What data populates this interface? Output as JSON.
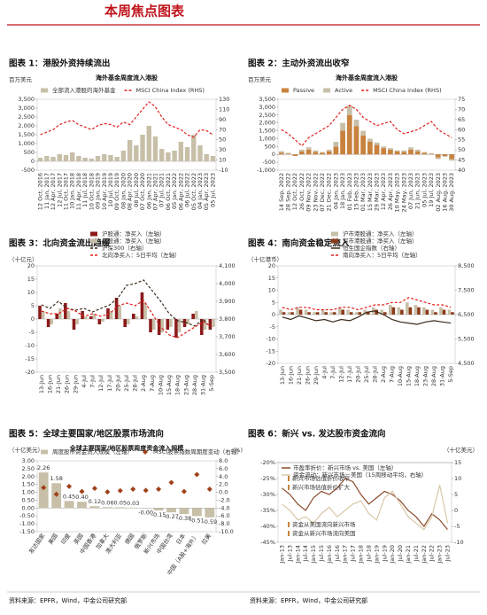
{
  "header": {
    "title": "本周焦点图表"
  },
  "source_left": "资料来源：EPFR，Wind，中金公司研究部",
  "source_right": "资料来源：EPFR，Wind，中金公司研究部",
  "chart_data": [
    {
      "type": "combo",
      "title": "图表 1：港股外资持续流出",
      "subtitle": "海外基金周度流入港股",
      "ylabel": "百万美元",
      "categories": [
        "12 Oct, 2016",
        "11 Jan, 2017",
        "12 Apr, 2017",
        "12 Jul, 2017",
        "11 Oct, 2017",
        "10 Jan, 2018",
        "11 Apr, 2018",
        "11 Jul, 2018",
        "10 Oct, 2018",
        "09 Jan, 2019",
        "10 Apr, 2019",
        "10 Jul, 2019",
        "09 Oct, 2019",
        "08 Jan, 2020",
        "08 Apr, 2020",
        "08 Jul, 2020",
        "07 Oct, 2020",
        "06 Jan, 2021",
        "07 Apr, 2021",
        "07 Jul, 2021",
        "06 Oct, 2021",
        "05 Jan, 2022",
        "06 Apr, 2022",
        "06 Jul, 2022",
        "05 Oct, 2022",
        "04 Jan, 2023",
        "05 Apr, 2023",
        "05 Jul, 2023"
      ],
      "series": [
        {
          "name": "全部流入港股的海外基金",
          "kind": "bar",
          "color": "#c8bfa8",
          "values": [
            200,
            300,
            250,
            400,
            350,
            500,
            300,
            200,
            150,
            300,
            400,
            350,
            250,
            600,
            1200,
            900,
            1500,
            2000,
            1400,
            700,
            500,
            600,
            1100,
            800,
            1500,
            900,
            400,
            300
          ]
        },
        {
          "name": "MSCI China Index (RHS)",
          "kind": "line",
          "dash": true,
          "axis": "y2",
          "color": "#e0201c",
          "values": [
            60,
            65,
            70,
            80,
            85,
            88,
            80,
            75,
            70,
            78,
            82,
            80,
            75,
            85,
            80,
            95,
            110,
            125,
            115,
            95,
            80,
            75,
            70,
            60,
            55,
            70,
            68,
            60
          ]
        }
      ],
      "ylim": [
        -500,
        3500
      ],
      "yticks": [
        -500,
        0,
        500,
        {
          "value": 1000,
          "label": "1,000"
        },
        {
          "value": 1500,
          "label": "1,500"
        },
        {
          "value": 2000,
          "label": "2,000"
        },
        {
          "value": 2500,
          "label": "2,500"
        },
        {
          "value": 3000,
          "label": "3,000"
        },
        {
          "value": 3500,
          "label": "3,500"
        }
      ],
      "y2lim": [
        -10,
        130
      ],
      "y2ticks": [
        -10,
        10,
        30,
        50,
        70,
        90,
        110,
        130
      ],
      "legend": "top"
    },
    {
      "type": "combo",
      "title": "图表 2：主动外资流出收窄",
      "subtitle": "海外基金周度流入港股",
      "ylabel": "百万美元",
      "stacked": true,
      "categories": [
        "14 Sep, 2022",
        "28 Sep, 2022",
        "12 Oct, 2022",
        "26 Oct, 2022",
        "09 Nov, 2022",
        "23 Nov, 2022",
        "07 Dec, 2022",
        "21 Dec, 2022",
        "04 Jan, 2023",
        "18 Jan, 2023",
        "01 Feb, 2023",
        "15 Feb, 2023",
        "01 Mar, 2023",
        "15 Mar, 2023",
        "29 Mar, 2023",
        "12 Apr, 2023",
        "26 Apr, 2023",
        "10 May, 2023",
        "24 May, 2023",
        "07 Jun, 2023",
        "21 Jun, 2023",
        "05 Jul, 2023",
        "19 Jul, 2023",
        "02 Aug, 2023",
        "16 Aug, 2023",
        "30 Aug, 2023"
      ],
      "series": [
        {
          "name": "Passive",
          "kind": "bar",
          "color": "#c8823e",
          "values": [
            100,
            50,
            -100,
            200,
            300,
            150,
            100,
            200,
            500,
            1500,
            2500,
            1800,
            1200,
            800,
            600,
            400,
            300,
            200,
            150,
            300,
            200,
            100,
            50,
            -200,
            -100,
            -300
          ]
        },
        {
          "name": "Active",
          "kind": "bar",
          "color": "#c8bfa8",
          "values": [
            100,
            50,
            0,
            100,
            150,
            100,
            50,
            100,
            300,
            500,
            600,
            400,
            300,
            200,
            150,
            100,
            100,
            50,
            100,
            150,
            100,
            50,
            0,
            -100,
            -50,
            -100
          ]
        },
        {
          "name": "MSCI China Index (RHS)",
          "kind": "line",
          "dash": true,
          "axis": "y2",
          "color": "#e0201c",
          "values": [
            60,
            58,
            55,
            52,
            56,
            58,
            60,
            62,
            66,
            70,
            72,
            70,
            66,
            64,
            62,
            63,
            64,
            60,
            58,
            59,
            60,
            62,
            64,
            60,
            58,
            56
          ]
        }
      ],
      "ylim": [
        -1000,
        3500
      ],
      "yticks": [
        {
          "value": -1000,
          "label": "-1,000"
        },
        -500,
        0,
        500,
        {
          "value": 1000,
          "label": "1,000"
        },
        {
          "value": 1500,
          "label": "1,500"
        },
        {
          "value": 2000,
          "label": "2,000"
        },
        {
          "value": 2500,
          "label": "2,500"
        },
        {
          "value": 3000,
          "label": "3,000"
        },
        {
          "value": 3500,
          "label": "3,500"
        }
      ],
      "y2lim": [
        40,
        75
      ],
      "y2ticks": [
        40,
        45,
        50,
        55,
        60,
        65,
        70,
        75
      ],
      "legend": "top"
    },
    {
      "type": "combo",
      "title": "图表 3：北向资金流出趋缓",
      "ylabel": "（十亿元）",
      "categories": [
        "13-Jun",
        "16-Jun",
        "21-Jun",
        "26-Jun",
        "29-Jun",
        "4-Jul",
        "7-Jul",
        "12-Jul",
        "17-Jul",
        "20-Jul",
        "25-Jul",
        "28-Jul",
        "2-Aug",
        "7-Aug",
        "10-Aug",
        "15-Aug",
        "18-Aug",
        "23-Aug",
        "28-Aug",
        "31-Aug",
        "5-Sep"
      ],
      "series": [
        {
          "name": "沪股通：净买入（左轴）",
          "kind": "bar",
          "color": "#8b1a1a",
          "values": [
            5,
            -3,
            2,
            6,
            -4,
            3,
            1,
            -2,
            4,
            8,
            -3,
            2,
            10,
            -5,
            -6,
            -4,
            -7,
            -3,
            2,
            -6,
            -4
          ]
        },
        {
          "name": "深股通：净买入（左轴）",
          "kind": "bar",
          "color": "#c8bfa8",
          "values": [
            3,
            -2,
            4,
            3,
            -2,
            1,
            2,
            -1,
            3,
            5,
            -2,
            1,
            6,
            -4,
            -5,
            -3,
            -5,
            -2,
            3,
            -4,
            -3
          ]
        },
        {
          "name": "沪深300（右轴）",
          "kind": "line",
          "dash": true,
          "axis": "y2",
          "color": "#3a2a1a",
          "values": [
            3880,
            3860,
            3900,
            3860,
            3850,
            3860,
            3840,
            3860,
            3880,
            3920,
            3990,
            4000,
            4020,
            3960,
            3900,
            3830,
            3790,
            3780,
            3760,
            3800,
            3740
          ]
        },
        {
          "name": "北向净买入：5日平均（左轴）",
          "kind": "line",
          "dash": true,
          "color": "#e0201c",
          "values": [
            3,
            2,
            2,
            4,
            3,
            1,
            2,
            1,
            2,
            5,
            6,
            5,
            7,
            2,
            -3,
            -6,
            -7,
            -5,
            -3,
            -1,
            -3
          ]
        }
      ],
      "ylim": [
        -20,
        20
      ],
      "yticks": [
        -20,
        -15,
        -10,
        -5,
        0,
        5,
        10,
        15,
        20
      ],
      "y2lim": [
        3500,
        4100
      ],
      "y2ticks": [
        {
          "value": 3500,
          "label": "3,500"
        },
        {
          "value": 3600,
          "label": "3,600"
        },
        {
          "value": 3700,
          "label": "3,700"
        },
        {
          "value": 3800,
          "label": "3,800"
        },
        {
          "value": 3900,
          "label": "3,900"
        },
        {
          "value": 4000,
          "label": "4,000"
        },
        {
          "value": 4100,
          "label": "4,100"
        }
      ],
      "legend": "top-center"
    },
    {
      "type": "combo",
      "title": "图表 4：南向资金稳定流入",
      "ylabel": "（十亿港币）",
      "categories": [
        "13-Jun",
        "16-Jun",
        "21-Jun",
        "26-Jun",
        "29-Jun",
        "4-Jul",
        "7-Jul",
        "12-Jul",
        "17-Jul",
        "20-Jul",
        "25-Jul",
        "28-Jul",
        "2-Aug",
        "7-Aug",
        "10-Aug",
        "15-Aug",
        "18-Aug",
        "23-Aug",
        "28-Aug",
        "31-Aug",
        "5-Sep"
      ],
      "series": [
        {
          "name": "沪市港股通：净买入（左轴）",
          "kind": "bar",
          "color": "#c8bfa8",
          "values": [
            2,
            1,
            3,
            2,
            1,
            2,
            1,
            3,
            2,
            1,
            2,
            3,
            2,
            4,
            3,
            5,
            4,
            3,
            2,
            3,
            2
          ]
        },
        {
          "name": "深市港股通：净买入（左轴）",
          "kind": "bar",
          "color": "#8b3a1a",
          "values": [
            1,
            1,
            2,
            1,
            1,
            1,
            1,
            2,
            1,
            1,
            1,
            2,
            1,
            3,
            2,
            3,
            3,
            2,
            1,
            2,
            1
          ]
        },
        {
          "name": "恒生国企指数（右轴）",
          "kind": "line",
          "axis": "y2",
          "color": "#3a2a1a",
          "values": [
            6400,
            6300,
            6450,
            6350,
            6250,
            6300,
            6200,
            6300,
            6250,
            6400,
            6600,
            6650,
            6500,
            6300,
            6200,
            6150,
            6100,
            6200,
            6250,
            6200,
            6150
          ]
        },
        {
          "name": "南向净买入：5日平均（左轴）",
          "kind": "line",
          "dash": true,
          "color": "#e0201c",
          "values": [
            3,
            2,
            3,
            3,
            2,
            2,
            2,
            3,
            3,
            2,
            3,
            4,
            4,
            5,
            5,
            7,
            6,
            5,
            4,
            4,
            3
          ]
        }
      ],
      "ylim": [
        -20,
        20
      ],
      "yticks": [
        -20,
        -15,
        -10,
        -5,
        0,
        5,
        10,
        15,
        20
      ],
      "y2lim": [
        4500,
        8500
      ],
      "y2ticks": [
        {
          "value": 4500,
          "label": "4,500"
        },
        {
          "value": 5500,
          "label": "5,500"
        },
        {
          "value": 6500,
          "label": "6,500"
        },
        {
          "value": 7500,
          "label": "7,500"
        },
        {
          "value": 8500,
          "label": "8,500"
        }
      ],
      "legend": "top-center"
    },
    {
      "type": "combo",
      "title": "图表 5：全球主要国家/地区股票市场流向",
      "subtitle": "全球主要国家/地区股票周度资金流入规模",
      "ylabel": "（十亿美元）",
      "y2label": "(%)",
      "categories": [
        "发达国家",
        "美国",
        "印度",
        "英国",
        "中国香港",
        "加拿大",
        "澳大利亚",
        "德国",
        "俄罗斯",
        "新兴市场",
        "中国台湾",
        "日本",
        "中国（A股+海外）",
        "拉美"
      ],
      "series": [
        {
          "name": "周度股市资金流入规模（左轴）",
          "kind": "bar",
          "color": "#c8bfa8",
          "values": [
            2.26,
            1.58,
            0.45,
            0.4,
            0.12,
            0.06,
            0.05,
            0.03,
            -0.001,
            -0.15,
            -0.27,
            -0.38,
            -0.51,
            -0.59
          ],
          "value_labels": [
            "2.26",
            "1.58",
            "0.45",
            "0.40",
            "0.12",
            "0.06",
            "0.05",
            "0.03",
            "-0.00",
            "-0.15",
            "-0.27",
            "-0.38",
            "-0.51",
            "-0.59"
          ]
        },
        {
          "name": "MSCI股票指数周期度变动（右轴）",
          "kind": "diamond",
          "axis": "y2",
          "color": "#a0401a",
          "values": [
            1.2,
            -0.5,
            1.5,
            0.2,
            1.0,
            0.1,
            0.4,
            0.8,
            0.5,
            0.8,
            2.5,
            0.2,
            4.5,
            0.8
          ]
        }
      ],
      "ylim": [
        -1.5,
        3.0
      ],
      "yticks": [
        {
          "value": -1.5,
          "label": "-1.50"
        },
        {
          "value": -1,
          "label": "-1.00"
        },
        {
          "value": -0.5,
          "label": "-0.50"
        },
        {
          "value": 0,
          "label": "0.00"
        },
        {
          "value": 0.5,
          "label": "0.50"
        },
        {
          "value": 1,
          "label": "1.00"
        },
        {
          "value": 1.5,
          "label": "1.50"
        },
        {
          "value": 2,
          "label": "2.00"
        },
        {
          "value": 2.5,
          "label": "2.50"
        },
        {
          "value": 3,
          "label": "3.00"
        }
      ],
      "y2lim": [
        -10,
        8
      ],
      "y2ticks": [
        {
          "value": -10,
          "label": "-10.0"
        },
        {
          "value": -8,
          "label": "-8.0"
        },
        {
          "value": -6,
          "label": "-6.0"
        },
        {
          "value": -4,
          "label": "-4.0"
        },
        {
          "value": -2,
          "label": "-2.0"
        },
        {
          "value": 0,
          "label": "0.0"
        },
        {
          "value": 2,
          "label": "2.0"
        },
        {
          "value": 4,
          "label": "4.0"
        },
        {
          "value": 6,
          "label": "6.0"
        },
        {
          "value": 8,
          "label": "8.0"
        }
      ],
      "legend": "top"
    },
    {
      "type": "combo",
      "title": "图表 6：新兴 vs. 发达股市资金流向",
      "y2label": "（十亿美元）",
      "categories": [
        "Jan-13",
        "Jul-13",
        "Jan-14",
        "Jul-14",
        "Jan-15",
        "Jul-15",
        "Jan-16",
        "Jul-16",
        "Jan-17",
        "Jul-17",
        "Jan-18",
        "Jul-18",
        "Jan-19",
        "Jul-19",
        "Jan-20",
        "Jul-20",
        "Jan-21",
        "Jul-21",
        "Jan-22",
        "Jul-22",
        "Jan-23",
        "Jul-23"
      ],
      "series": [
        {
          "name": "市盈率折价：新兴市场 vs. 美国（左轴）",
          "kind": "line",
          "color": "#8b4a2b",
          "values": [
            -28,
            -30,
            -33,
            -35,
            -31,
            -29,
            -30,
            -28,
            -25,
            -26,
            -30,
            -33,
            -31,
            -29,
            -30,
            -32,
            -35,
            -37,
            -40,
            -36,
            -38,
            -41
          ]
        },
        {
          "name": "资金流动：新兴市场－美国（15周移动平均，右轴）",
          "kind": "line",
          "axis": "y2",
          "color": "#d8c8a8",
          "values": [
            2,
            0,
            -3,
            -2,
            -4,
            -1,
            1,
            -2,
            0,
            2,
            3,
            -1,
            -3,
            4,
            6,
            2,
            -2,
            -4,
            -6,
            -2,
            8,
            -4
          ]
        }
      ],
      "ylim": [
        -45,
        -20
      ],
      "yticks": [
        {
          "value": -45,
          "label": "-45%"
        },
        {
          "value": -40,
          "label": "-40%"
        },
        {
          "value": -35,
          "label": "-35%"
        },
        {
          "value": -30,
          "label": "-30%"
        },
        {
          "value": -25,
          "label": "-25%"
        },
        {
          "value": -20,
          "label": "-20%"
        }
      ],
      "y2lim": [
        -10,
        15
      ],
      "y2ticks": [
        -10,
        -5,
        0,
        5,
        10,
        15
      ],
      "legend": "top-left",
      "annotations": [
        "新兴市场估值折价收窄",
        "新兴市场估值折价扩大",
        "资金从美国流向新兴市场",
        "资金从新兴市场流向美国"
      ]
    }
  ]
}
